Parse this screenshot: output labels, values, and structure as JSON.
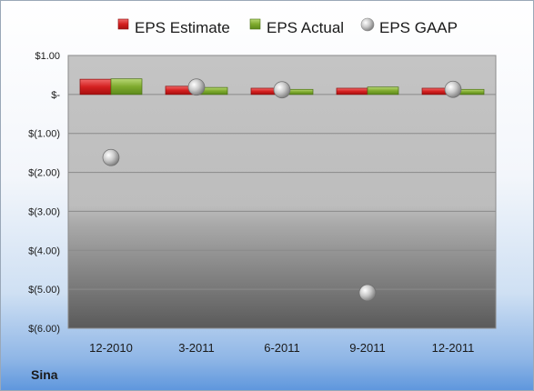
{
  "chart_data": {
    "type": "bar",
    "categories": [
      "12-2010",
      "3-2011",
      "6-2011",
      "9-2011",
      "12-2011"
    ],
    "series": [
      {
        "name": "EPS Estimate",
        "kind": "bar",
        "color": "#d42020",
        "values": [
          0.39,
          0.21,
          0.16,
          0.16,
          0.16
        ]
      },
      {
        "name": "EPS Actual",
        "kind": "bar",
        "color": "#7faa2e",
        "values": [
          0.4,
          0.18,
          0.13,
          0.19,
          0.13
        ]
      },
      {
        "name": "EPS GAAP",
        "kind": "marker",
        "color": "#b8b8b8",
        "values": [
          -1.62,
          0.19,
          0.12,
          -5.09,
          0.13
        ]
      }
    ],
    "y_ticks": [
      {
        "value": 1.0,
        "label": "$1.00"
      },
      {
        "value": 0.0,
        "label": "$-"
      },
      {
        "value": -1.0,
        "label": "$(1.00)"
      },
      {
        "value": -2.0,
        "label": "$(2.00)"
      },
      {
        "value": -3.0,
        "label": "$(3.00)"
      },
      {
        "value": -4.0,
        "label": "$(4.00)"
      },
      {
        "value": -5.0,
        "label": "$(5.00)"
      },
      {
        "value": -6.0,
        "label": "$(6.00)"
      }
    ],
    "ylim": [
      -6.0,
      1.0
    ],
    "grid": true,
    "legend_position": "top"
  },
  "company": "Sina"
}
